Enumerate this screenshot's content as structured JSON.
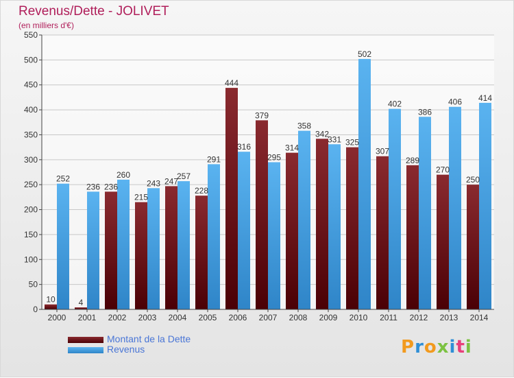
{
  "title": "Revenus/Dette - JOLIVET",
  "subtitle": "(en milliers d'€)",
  "legend": {
    "debt_label": "Montant de la Dette",
    "revenue_label": "Revenus"
  },
  "logo_text": "Proxiti",
  "colors": {
    "debt": "#7a1f24",
    "revenue": "#4aa3e6",
    "title": "#b01e5a",
    "legend_text": "#4a76d6"
  },
  "chart_data": {
    "type": "bar",
    "title": "Revenus/Dette - JOLIVET",
    "subtitle": "(en milliers d'€)",
    "categories": [
      "2000",
      "2001",
      "2002",
      "2003",
      "2004",
      "2005",
      "2006",
      "2007",
      "2008",
      "2009",
      "2010",
      "2011",
      "2012",
      "2013",
      "2014"
    ],
    "series": [
      {
        "name": "Montant de la Dette",
        "values": [
          10,
          4,
          236,
          215,
          247,
          228,
          444,
          379,
          314,
          342,
          325,
          307,
          289,
          270,
          250
        ]
      },
      {
        "name": "Revenus",
        "values": [
          252,
          236,
          260,
          243,
          257,
          291,
          316,
          295,
          358,
          331,
          502,
          402,
          386,
          406,
          414
        ]
      }
    ],
    "ylim": [
      0,
      550
    ],
    "yticks": [
      0,
      50,
      100,
      150,
      200,
      250,
      300,
      350,
      400,
      450,
      500,
      550
    ],
    "grid": true,
    "legend_position": "bottom-left"
  }
}
